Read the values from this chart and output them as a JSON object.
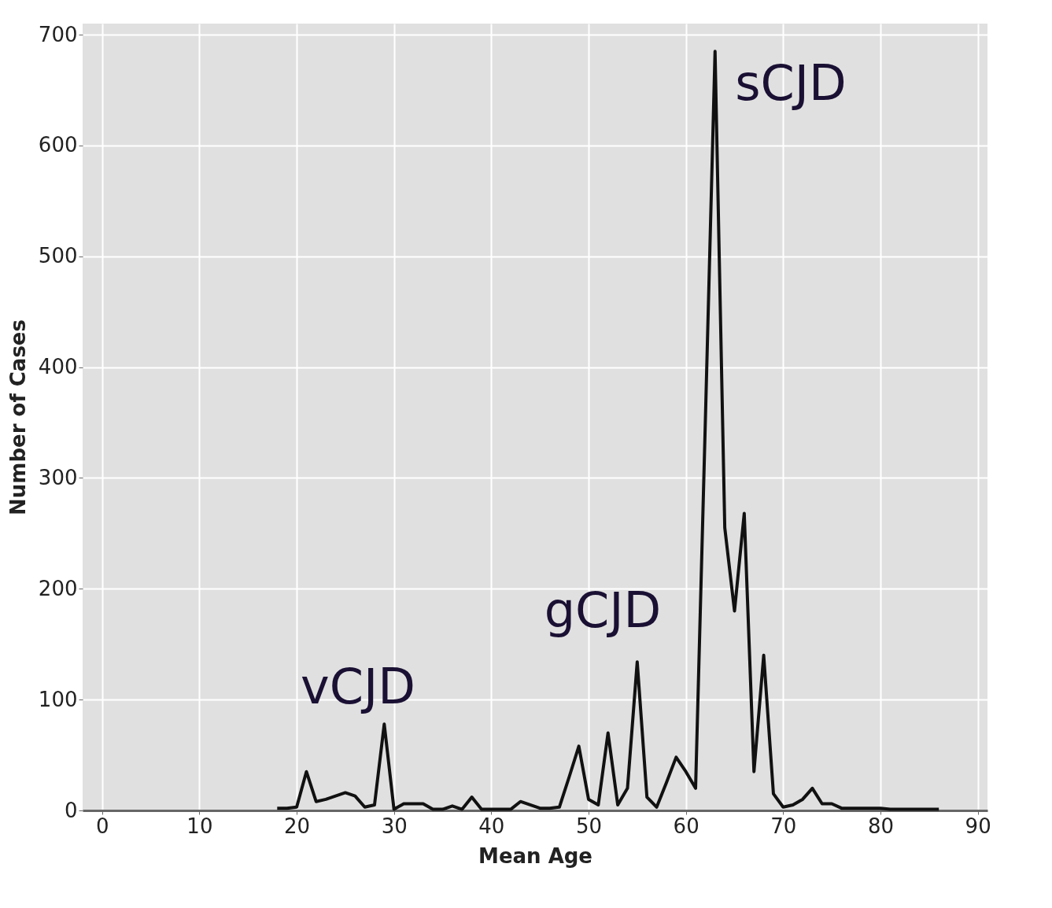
{
  "chart_data": {
    "type": "line",
    "xlabel": "Mean Age",
    "ylabel": "Number of Cases",
    "x": [
      18,
      19,
      20,
      21,
      22,
      23,
      24,
      25,
      26,
      27,
      28,
      29,
      30,
      31,
      32,
      33,
      34,
      35,
      36,
      37,
      38,
      39,
      40,
      41,
      42,
      43,
      44,
      45,
      46,
      47,
      48,
      49,
      50,
      51,
      52,
      53,
      54,
      55,
      56,
      57,
      58,
      59,
      60,
      61,
      62,
      63,
      64,
      65,
      66,
      67,
      68,
      69,
      70,
      71,
      72,
      73,
      74,
      75,
      76,
      77,
      78,
      79,
      80,
      81,
      82,
      83,
      84,
      85,
      86
    ],
    "series": [
      {
        "color": "#111111",
        "values": [
          2,
          2,
          3,
          35,
          8,
          10,
          13,
          16,
          13,
          3,
          5,
          78,
          1,
          6,
          6,
          6,
          1,
          1,
          4,
          1,
          12,
          1,
          1,
          1,
          1,
          8,
          5,
          2,
          2,
          3,
          30,
          58,
          10,
          5,
          70,
          5,
          20,
          134,
          12,
          3,
          25,
          48,
          35,
          20,
          350,
          685,
          255,
          180,
          268,
          35,
          140,
          15,
          3,
          5,
          10,
          20,
          6,
          6,
          2,
          2,
          2,
          2,
          2,
          1,
          1,
          1,
          1,
          1,
          1
        ]
      }
    ],
    "xlim": [
      -2,
      91
    ],
    "ylim": [
      0,
      710
    ],
    "xticks": [
      0,
      10,
      20,
      30,
      40,
      50,
      60,
      70,
      80,
      90
    ],
    "yticks": [
      0,
      100,
      200,
      300,
      400,
      500,
      600,
      700
    ],
    "grid": true,
    "line_style": "solid",
    "marker": "none",
    "annotations": [
      "vCJD",
      "gCJD",
      "sCJD"
    ]
  }
}
